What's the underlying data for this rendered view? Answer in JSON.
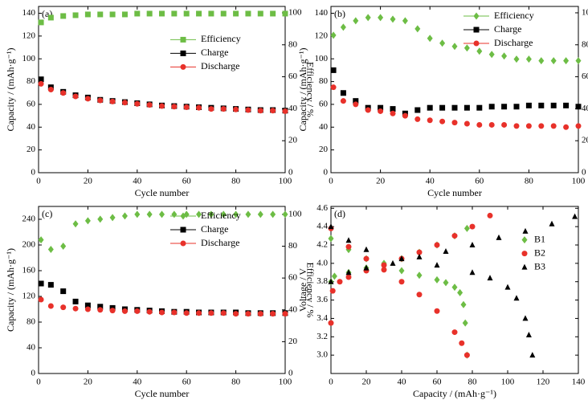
{
  "chart_data": [
    {
      "type": "scatter",
      "label": "(a)",
      "xlabel": "Cycle number",
      "ylabel": "Capacity / (mAh·g⁻¹)",
      "y2label": "Efficiency / %",
      "xlim": [
        0,
        100
      ],
      "xticks": [
        0,
        20,
        40,
        60,
        80,
        100
      ],
      "ylim": [
        0,
        146
      ],
      "yticks": [
        0,
        20,
        40,
        60,
        80,
        100,
        120,
        140
      ],
      "y2lim": [
        0,
        104
      ],
      "y2ticks": [
        0,
        20,
        40,
        60,
        80,
        100
      ],
      "legend": "center right",
      "x": [
        1,
        5,
        10,
        15,
        20,
        25,
        30,
        35,
        40,
        45,
        50,
        55,
        60,
        65,
        70,
        75,
        80,
        85,
        90,
        95,
        100
      ],
      "series": [
        {
          "name": "Efficiency",
          "color": "#6dbd45",
          "marker": "square",
          "axis": "y2",
          "values": [
            94,
            97,
            98,
            98.5,
            99,
            99,
            99,
            99,
            99.5,
            99.5,
            99.5,
            99.5,
            99.5,
            99.5,
            99.5,
            99.5,
            99.5,
            99.5,
            99.5,
            99.5,
            99.5
          ]
        },
        {
          "name": "Charge",
          "color": "#000000",
          "marker": "square",
          "values": [
            82,
            75,
            71,
            68,
            66,
            64,
            63,
            62,
            61,
            60,
            59,
            58.5,
            58,
            57.5,
            57,
            56.5,
            56,
            55.5,
            55,
            55,
            54.5
          ]
        },
        {
          "name": "Discharge",
          "color": "#e8312a",
          "marker": "circle",
          "values": [
            78,
            73,
            70,
            67,
            65,
            63.5,
            62.5,
            61.5,
            60.5,
            59.5,
            58.5,
            58,
            57.5,
            57,
            56,
            56,
            55.5,
            55,
            54.5,
            54.5,
            54
          ]
        }
      ]
    },
    {
      "type": "scatter",
      "label": "(b)",
      "xlabel": "Cycle number",
      "ylabel": "Capacity / (mAh·g⁻¹)",
      "y2label": "Efficiency / %",
      "xlim": [
        0,
        100
      ],
      "xticks": [
        0,
        20,
        40,
        60,
        80,
        100
      ],
      "ylim": [
        0,
        146
      ],
      "yticks": [
        0,
        20,
        40,
        60,
        80,
        100,
        120,
        140
      ],
      "y2lim": [
        0,
        104
      ],
      "y2ticks": [
        0,
        20,
        40,
        60,
        80,
        100
      ],
      "legend": "upper right",
      "x": [
        1,
        5,
        10,
        15,
        20,
        25,
        30,
        35,
        40,
        45,
        50,
        55,
        60,
        65,
        70,
        75,
        80,
        85,
        90,
        95,
        100
      ],
      "series": [
        {
          "name": "Efficiency",
          "color": "#6dbd45",
          "marker": "diamond",
          "axis": "y2",
          "values": [
            86,
            91,
            95,
            97,
            97,
            96,
            95,
            90,
            84,
            81,
            79,
            78,
            76,
            74,
            73,
            71,
            71,
            70,
            70,
            70,
            70
          ]
        },
        {
          "name": "Charge",
          "color": "#000000",
          "marker": "square",
          "values": [
            90,
            70,
            63,
            57,
            57,
            56,
            52,
            55,
            57,
            57,
            57,
            57,
            57,
            58,
            58,
            58,
            59,
            59,
            59,
            59,
            58
          ]
        },
        {
          "name": "Discharge",
          "color": "#e8312a",
          "marker": "circle",
          "values": [
            75,
            63,
            60,
            55,
            54,
            52,
            50,
            47,
            46,
            45,
            44,
            43,
            42,
            42,
            42,
            41,
            41,
            41,
            41,
            40,
            41
          ]
        }
      ]
    },
    {
      "type": "scatter",
      "label": "(c)",
      "xlabel": "Cycle number",
      "ylabel": "Capacity / (mAh·g⁻¹)",
      "y2label": "Efficiency / %",
      "xlim": [
        0,
        100
      ],
      "xticks": [
        0,
        20,
        40,
        60,
        80,
        100
      ],
      "ylim": [
        0,
        260
      ],
      "yticks": [
        0,
        40,
        80,
        120,
        160,
        200,
        240
      ],
      "y2lim": [
        0,
        105
      ],
      "y2ticks": [
        0,
        20,
        40,
        60,
        80,
        100
      ],
      "legend": "upper right",
      "x": [
        1,
        5,
        10,
        15,
        20,
        25,
        30,
        35,
        40,
        45,
        50,
        55,
        60,
        65,
        70,
        75,
        80,
        85,
        90,
        95,
        100
      ],
      "series": [
        {
          "name": "Efficiency",
          "color": "#6dbd45",
          "marker": "diamond",
          "axis": "y2",
          "values": [
            84,
            78,
            80,
            94,
            96,
            97,
            98,
            99,
            100,
            100,
            100,
            100,
            100,
            100,
            100,
            100,
            100,
            100,
            100,
            100,
            100
          ]
        },
        {
          "name": "Charge",
          "color": "#000000",
          "marker": "square",
          "values": [
            140,
            138,
            128,
            112,
            106,
            104,
            102,
            100,
            99,
            98,
            97,
            96,
            96,
            95,
            95,
            95,
            95,
            94,
            94,
            94,
            94
          ]
        },
        {
          "name": "Discharge",
          "color": "#e8312a",
          "marker": "circle",
          "values": [
            115,
            105,
            103,
            101,
            100,
            99,
            98,
            97,
            97,
            96,
            95,
            95,
            94,
            94,
            94,
            94,
            93,
            93,
            93,
            93,
            93
          ]
        }
      ]
    },
    {
      "type": "scatter",
      "label": "(d)",
      "xlabel": "Capacity / (mAh·g⁻¹)",
      "ylabel": "Voltage / V",
      "xlim": [
        0,
        140
      ],
      "xticks": [
        0,
        20,
        40,
        60,
        80,
        100,
        120,
        140
      ],
      "ylim": [
        2.8,
        4.62
      ],
      "yticks": [
        {
          "value": 3,
          "label": "3.0"
        },
        {
          "value": 3.2,
          "label": "3.2"
        },
        {
          "value": 3.4,
          "label": "3.4"
        },
        {
          "value": 3.6,
          "label": "3.6"
        },
        {
          "value": 3.8,
          "label": "3.8"
        },
        {
          "value": 4,
          "label": "4.0"
        },
        {
          "value": 4.2,
          "label": "4.2"
        },
        {
          "value": 4.4,
          "label": "4.4"
        },
        {
          "value": 4.6,
          "label": "4.6"
        }
      ],
      "legend": "center right",
      "series": [
        {
          "name": "B1",
          "color": "#6dbd45",
          "marker": "diamond",
          "x": [
            0,
            2,
            10,
            20,
            30,
            40,
            50,
            60,
            70,
            77,
            0,
            10,
            20,
            30,
            40,
            50,
            60,
            65,
            70,
            73,
            75,
            76,
            77
          ],
          "values": [
            3.8,
            3.86,
            3.9,
            3.95,
            4.0,
            4.05,
            4.12,
            4.2,
            4.3,
            4.38,
            4.27,
            4.15,
            4.05,
            3.98,
            3.92,
            3.87,
            3.82,
            3.79,
            3.74,
            3.68,
            3.55,
            3.35,
            3.0
          ]
        },
        {
          "name": "B2",
          "color": "#e8312a",
          "marker": "circle",
          "x": [
            0,
            1,
            5,
            10,
            20,
            30,
            40,
            50,
            60,
            70,
            80,
            90,
            0,
            10,
            20,
            30,
            40,
            50,
            60,
            70,
            74,
            77
          ],
          "values": [
            3.35,
            3.7,
            3.8,
            3.85,
            3.92,
            3.98,
            4.05,
            4.12,
            4.2,
            4.3,
            4.4,
            4.52,
            4.38,
            4.18,
            4.05,
            3.93,
            3.8,
            3.66,
            3.48,
            3.25,
            3.13,
            3.0
          ]
        },
        {
          "name": "B3",
          "color": "#000000",
          "marker": "triangle",
          "x": [
            0,
            10,
            20,
            35,
            50,
            65,
            80,
            95,
            110,
            125,
            138,
            0,
            10,
            20,
            40,
            60,
            80,
            90,
            100,
            105,
            110,
            112,
            114
          ],
          "values": [
            3.8,
            3.9,
            3.95,
            4.0,
            4.07,
            4.13,
            4.2,
            4.28,
            4.35,
            4.43,
            4.51,
            4.4,
            4.25,
            4.15,
            4.05,
            3.98,
            3.9,
            3.84,
            3.74,
            3.62,
            3.4,
            3.22,
            3.0
          ]
        }
      ]
    }
  ]
}
